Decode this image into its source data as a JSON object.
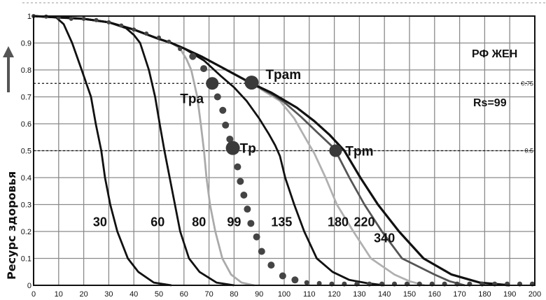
{
  "chart_data": {
    "type": "line",
    "title": "",
    "xlabel": "",
    "ylabel": "Ресурс здоровья",
    "xlim": [
      0,
      200
    ],
    "ylim": [
      0,
      1
    ],
    "grid": true,
    "x_ticks": [
      "0",
      "10",
      "20",
      "30",
      "40",
      "50",
      "60",
      "70",
      "80",
      "90",
      "100",
      "110",
      "120",
      "130",
      "140",
      "150",
      "160",
      "170",
      "180",
      "190",
      "200"
    ],
    "y_ticks": [
      "0",
      "0.1",
      "0.2",
      "0.3",
      "0.4",
      "0.5",
      "0.6",
      "0.7",
      "0.8",
      "0.9",
      "1"
    ],
    "reference_lines": [
      {
        "y": 0.75,
        "label": "0.75",
        "style": "dashed"
      },
      {
        "y": 0.5,
        "label": "0.5",
        "style": "dashed"
      }
    ],
    "annotations": {
      "group": "РФ ЖЕН",
      "rs": "Rs=99"
    },
    "series": [
      {
        "name": "30",
        "color": "#111111",
        "style": "solid",
        "points": [
          [
            0,
            1
          ],
          [
            9,
            0.995
          ],
          [
            12,
            0.97
          ],
          [
            15.4,
            0.9
          ],
          [
            19.2,
            0.8
          ],
          [
            22.9,
            0.7
          ],
          [
            24.8,
            0.6
          ],
          [
            27,
            0.5
          ],
          [
            28.5,
            0.4
          ],
          [
            30.6,
            0.3
          ],
          [
            33.4,
            0.2
          ],
          [
            37.6,
            0.1
          ],
          [
            41.8,
            0.05
          ],
          [
            48,
            0.01
          ],
          [
            55,
            0
          ]
        ]
      },
      {
        "name": "60",
        "color": "#111111",
        "style": "solid",
        "points": [
          [
            0,
            1
          ],
          [
            20,
            0.99
          ],
          [
            30,
            0.977
          ],
          [
            36.9,
            0.955
          ],
          [
            40,
            0.93
          ],
          [
            42.5,
            0.9
          ],
          [
            46,
            0.8
          ],
          [
            48.5,
            0.7
          ],
          [
            50.3,
            0.6
          ],
          [
            52.2,
            0.5
          ],
          [
            54.3,
            0.4
          ],
          [
            56.4,
            0.3
          ],
          [
            58.5,
            0.2
          ],
          [
            62,
            0.1
          ],
          [
            66.2,
            0.05
          ],
          [
            73,
            0.01
          ],
          [
            80,
            0
          ]
        ]
      },
      {
        "name": "80",
        "color": "#aaaaaa",
        "style": "solid",
        "points": [
          [
            0,
            1
          ],
          [
            20,
            0.99
          ],
          [
            30,
            0.977
          ],
          [
            40,
            0.95
          ],
          [
            50,
            0.915
          ],
          [
            55,
            0.9
          ],
          [
            58.4,
            0.88
          ],
          [
            61,
            0.84
          ],
          [
            62.9,
            0.8
          ],
          [
            65.3,
            0.7
          ],
          [
            66.7,
            0.6
          ],
          [
            68,
            0.5
          ],
          [
            69,
            0.4
          ],
          [
            70.4,
            0.3
          ],
          [
            72.5,
            0.2
          ],
          [
            75.3,
            0.1
          ],
          [
            78.8,
            0.04
          ],
          [
            83,
            0.01
          ],
          [
            88,
            0
          ]
        ]
      },
      {
        "name": "99",
        "color": "#444444",
        "style": "dots",
        "points": [
          [
            0,
            1
          ],
          [
            5,
            0.998
          ],
          [
            10,
            0.995
          ],
          [
            15,
            0.99
          ],
          [
            20,
            0.99
          ],
          [
            25,
            0.985
          ],
          [
            30,
            0.977
          ],
          [
            35,
            0.965
          ],
          [
            40,
            0.95
          ],
          [
            45,
            0.935
          ],
          [
            50,
            0.92
          ],
          [
            54,
            0.905
          ],
          [
            58.4,
            0.878
          ],
          [
            63.5,
            0.85
          ],
          [
            67.9,
            0.805
          ],
          [
            73.4,
            0.7
          ],
          [
            75.5,
            0.65
          ],
          [
            76.6,
            0.595
          ],
          [
            78.3,
            0.543
          ],
          [
            81.4,
            0.44
          ],
          [
            82.5,
            0.386
          ],
          [
            83.9,
            0.335
          ],
          [
            85.3,
            0.283
          ],
          [
            86.7,
            0.23
          ],
          [
            89,
            0.18
          ],
          [
            91,
            0.126
          ],
          [
            94.8,
            0.075
          ],
          [
            99.4,
            0.035
          ],
          [
            104.3,
            0.02
          ],
          [
            109,
            0.01
          ],
          [
            114,
            0.007
          ],
          [
            119,
            0.005
          ],
          [
            124,
            0.005
          ],
          [
            129,
            0.005
          ],
          [
            134,
            0.005
          ],
          [
            139,
            0.005
          ],
          [
            144,
            0.005
          ],
          [
            149,
            0.005
          ],
          [
            154,
            0.005
          ],
          [
            159,
            0.005
          ],
          [
            164,
            0.005
          ],
          [
            169,
            0.005
          ],
          [
            174,
            0.005
          ],
          [
            179,
            0.005
          ],
          [
            184,
            0.005
          ],
          [
            189,
            0.005
          ],
          [
            194,
            0.005
          ],
          [
            199,
            0.005
          ]
        ]
      },
      {
        "name": "135",
        "color": "#111111",
        "style": "solid",
        "points": [
          [
            0,
            1
          ],
          [
            20,
            0.99
          ],
          [
            30,
            0.977
          ],
          [
            40,
            0.95
          ],
          [
            50,
            0.915
          ],
          [
            55,
            0.9
          ],
          [
            60,
            0.88
          ],
          [
            68,
            0.835
          ],
          [
            75,
            0.775
          ],
          [
            80,
            0.735
          ],
          [
            85,
            0.685
          ],
          [
            90,
            0.62
          ],
          [
            94,
            0.56
          ],
          [
            96.4,
            0.52
          ],
          [
            98.3,
            0.48
          ],
          [
            100.4,
            0.4
          ],
          [
            104,
            0.3
          ],
          [
            108,
            0.2
          ],
          [
            113,
            0.1
          ],
          [
            119.3,
            0.05
          ],
          [
            126,
            0.02
          ],
          [
            133,
            0.008
          ],
          [
            140,
            0
          ]
        ]
      },
      {
        "name": "180",
        "color": "#b0b0b0",
        "style": "solid",
        "points": [
          [
            0,
            1
          ],
          [
            20,
            0.99
          ],
          [
            30,
            0.977
          ],
          [
            40,
            0.95
          ],
          [
            50,
            0.915
          ],
          [
            55,
            0.9
          ],
          [
            60,
            0.88
          ],
          [
            67,
            0.85
          ],
          [
            75,
            0.81
          ],
          [
            80,
            0.785
          ],
          [
            87,
            0.75
          ],
          [
            93,
            0.715
          ],
          [
            98.3,
            0.685
          ],
          [
            104,
            0.62
          ],
          [
            109.5,
            0.53
          ],
          [
            112,
            0.49
          ],
          [
            116.5,
            0.4
          ],
          [
            121,
            0.3
          ],
          [
            127.6,
            0.2
          ],
          [
            134.6,
            0.1
          ],
          [
            144,
            0.04
          ],
          [
            150,
            0.015
          ],
          [
            156,
            0
          ]
        ]
      },
      {
        "name": "220",
        "color": "#555555",
        "style": "solid",
        "points": [
          [
            0,
            1
          ],
          [
            20,
            0.99
          ],
          [
            30,
            0.977
          ],
          [
            40,
            0.95
          ],
          [
            50,
            0.915
          ],
          [
            55,
            0.9
          ],
          [
            60,
            0.88
          ],
          [
            67,
            0.85
          ],
          [
            75,
            0.81
          ],
          [
            80,
            0.785
          ],
          [
            87,
            0.75
          ],
          [
            95,
            0.71
          ],
          [
            100,
            0.68
          ],
          [
            106.7,
            0.626
          ],
          [
            113,
            0.57
          ],
          [
            118.7,
            0.52
          ],
          [
            121,
            0.49
          ],
          [
            126,
            0.4
          ],
          [
            132,
            0.3
          ],
          [
            139,
            0.2
          ],
          [
            147,
            0.1
          ],
          [
            160,
            0.04
          ],
          [
            166,
            0.015
          ],
          [
            172,
            0
          ]
        ]
      },
      {
        "name": "340",
        "color": "#111111",
        "style": "solid",
        "points": [
          [
            0,
            1
          ],
          [
            20,
            0.99
          ],
          [
            30,
            0.977
          ],
          [
            40,
            0.95
          ],
          [
            50,
            0.915
          ],
          [
            55,
            0.9
          ],
          [
            60,
            0.88
          ],
          [
            67,
            0.85
          ],
          [
            75,
            0.81
          ],
          [
            80,
            0.785
          ],
          [
            87,
            0.75
          ],
          [
            95,
            0.715
          ],
          [
            105,
            0.66
          ],
          [
            112,
            0.61
          ],
          [
            118,
            0.56
          ],
          [
            124,
            0.5
          ],
          [
            130.4,
            0.4
          ],
          [
            137.4,
            0.3
          ],
          [
            145.8,
            0.2
          ],
          [
            155.6,
            0.1
          ],
          [
            166.8,
            0.04
          ],
          [
            178,
            0.01
          ],
          [
            190,
            0
          ]
        ]
      }
    ],
    "markers": [
      {
        "label": "Tpa",
        "x": 71.3,
        "y": 0.75
      },
      {
        "label": "Tpam",
        "x": 87,
        "y": 0.753
      },
      {
        "label": "Tp",
        "x": 79.5,
        "y": 0.51
      },
      {
        "label": "Tpm",
        "x": 120.5,
        "y": 0.5
      }
    ]
  }
}
